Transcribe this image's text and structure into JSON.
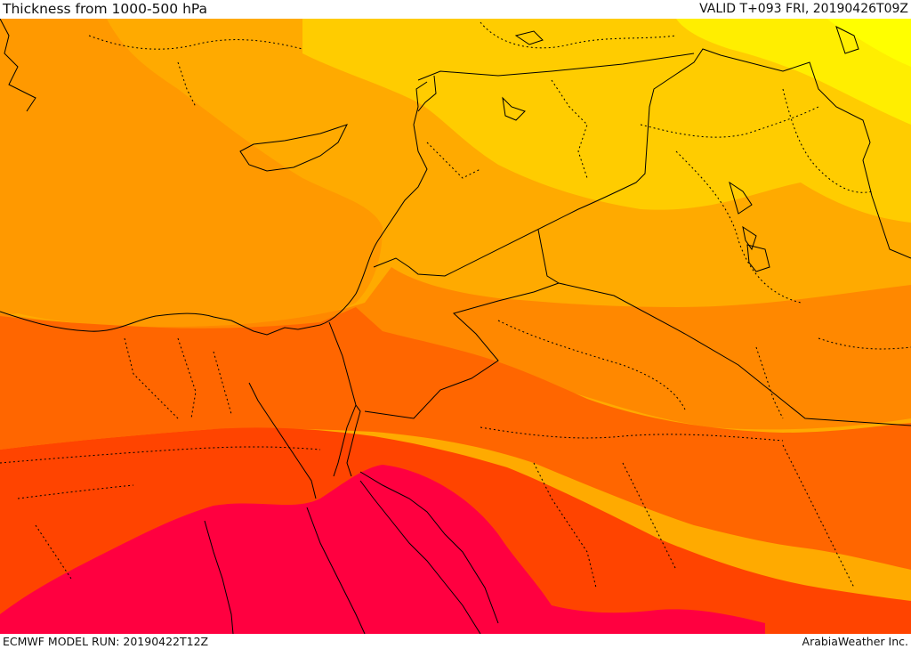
{
  "header": {
    "title": "Thickness from 1000-500 hPa",
    "valid": "VALID T+093 FRI, 20190426T09Z"
  },
  "footer": {
    "model_run": "ECMWF MODEL RUN: 20190422T12Z",
    "credit": "ArabiaWeather Inc."
  },
  "map": {
    "field": "1000-500 hPa thickness",
    "colors": {
      "yellow_light": "#ffff00",
      "yellow": "#ffcc00",
      "orange_light": "#ffaa00",
      "orange": "#ff8c00",
      "orange_dark": "#ff6600",
      "red_orange": "#ff4400",
      "crimson": "#ff0040",
      "border_line": "#000000"
    }
  }
}
